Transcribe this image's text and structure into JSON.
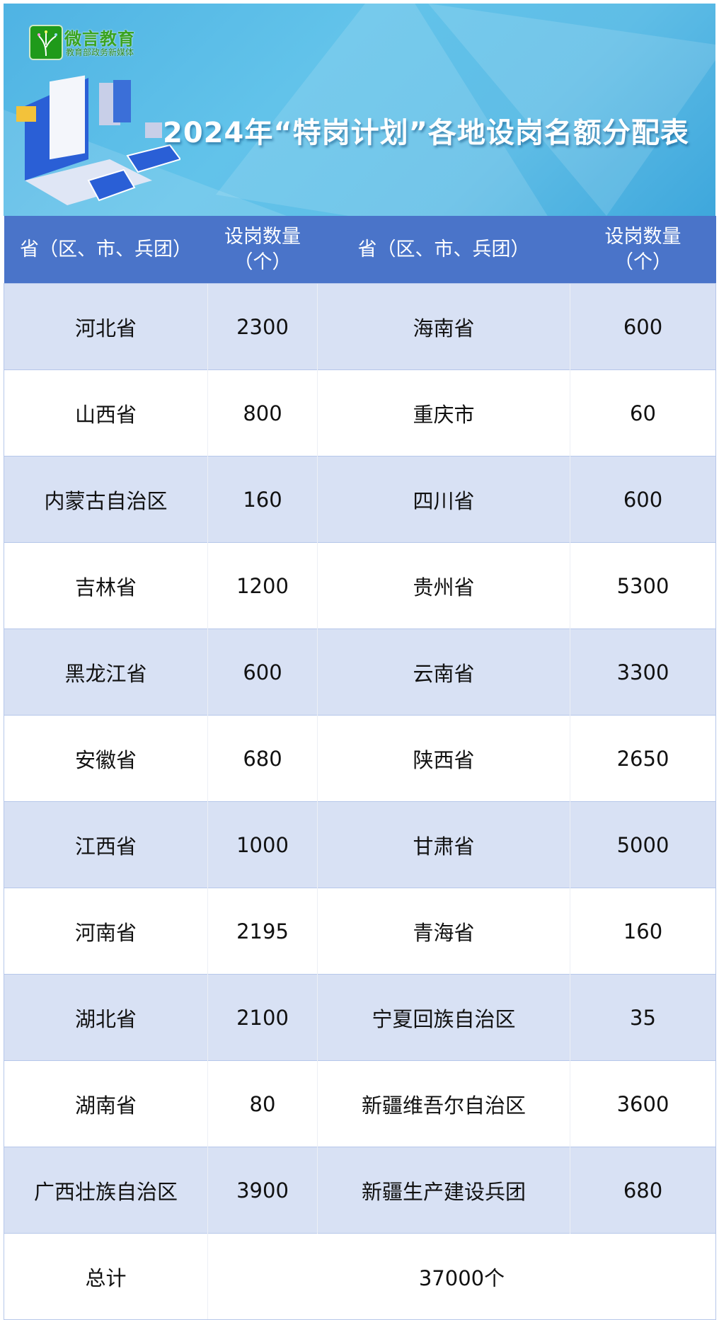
{
  "banner": {
    "logo_main": "微言教育",
    "logo_sub": "教育部政务新媒体",
    "title": "2024年“特岗计划”各地设岗名额分配表"
  },
  "table": {
    "headers": [
      "省（区、市、兵团）",
      "设岗数量（个）",
      "省（区、市、兵团）",
      "设岗数量（个）"
    ],
    "rows": [
      [
        "河北省",
        "2300",
        "海南省",
        "600"
      ],
      [
        "山西省",
        "800",
        "重庆市",
        "60"
      ],
      [
        "内蒙古自治区",
        "160",
        "四川省",
        "600"
      ],
      [
        "吉林省",
        "1200",
        "贵州省",
        "5300"
      ],
      [
        "黑龙江省",
        "600",
        "云南省",
        "3300"
      ],
      [
        "安徽省",
        "680",
        "陕西省",
        "2650"
      ],
      [
        "江西省",
        "1000",
        "甘肃省",
        "5000"
      ],
      [
        "河南省",
        "2195",
        "青海省",
        "160"
      ],
      [
        "湖北省",
        "2100",
        "宁夏回族自治区",
        "35"
      ],
      [
        "湖南省",
        "80",
        "新疆维吾尔自治区",
        "3600"
      ],
      [
        "广西壮族自治区",
        "3900",
        "新疆生产建设兵团",
        "680"
      ]
    ],
    "total_label": "总计",
    "total_value": "37000个"
  },
  "colors": {
    "header_bg": "#4a74c9",
    "alt_row": "#d8e1f4",
    "banner": "#5fbde6",
    "logo": "#1f9a1a"
  }
}
